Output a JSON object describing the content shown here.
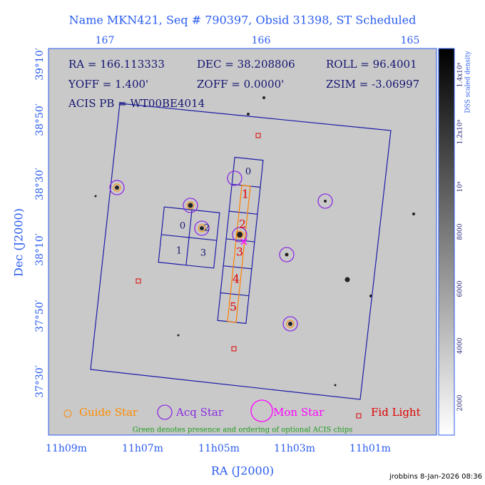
{
  "title": "Name MKN421, Seq # 790397, Obsid 31398, ST Scheduled",
  "info": [
    "RA = 166.113333",
    "DEC = 38.208806",
    "ROLL = 96.4001",
    "YOFF = 1.400'",
    "ZOFF = 0.0000'",
    "ZSIM = -3.06997",
    "ACIS PB = WT00BE4014"
  ],
  "top_axis": [
    "167",
    "166",
    "165"
  ],
  "left_axis": [
    "39°10′",
    "38°50′",
    "38°30′",
    "38°10′",
    "37°50′",
    "37°30′"
  ],
  "bottom_axis": [
    "11h09m",
    "11h07m",
    "11h05m",
    "11h03m",
    "11h01m"
  ],
  "x_label": "RA (J2000)",
  "y_label": "Dec (J2000)",
  "colorbar": {
    "label": "DSS scaled density",
    "ticks": [
      "2000",
      "4000",
      "6000",
      "8000",
      "10⁴",
      "1.2x10⁴",
      "1.4x10⁴"
    ]
  },
  "chips": {
    "acis_i": [
      "0",
      "2",
      "1",
      "3"
    ],
    "acis_s": [
      "0",
      "1",
      "2",
      "3",
      "4",
      "5"
    ]
  },
  "legend": [
    "Guide Star",
    "Acq Star",
    "Mon Star",
    "Fid Light"
  ],
  "note": "Green denotes presence and ordering of optional ACIS chips",
  "footer": "jrobbins  8-Jan-2026 08:36"
}
